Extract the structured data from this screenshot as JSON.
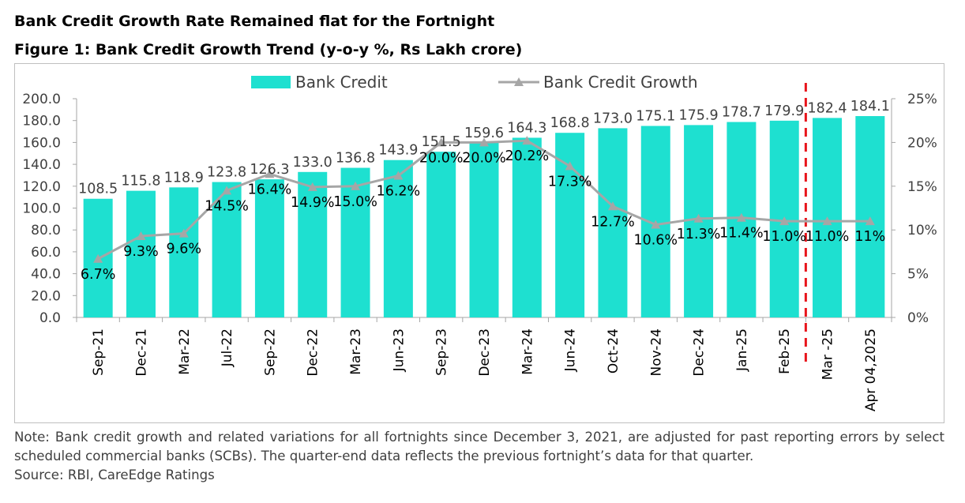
{
  "heading": "Bank Credit Growth Rate Remained flat for the Fortnight",
  "figure_title": "Figure 1: Bank Credit Growth Trend (y-o-y %, Rs Lakh crore)",
  "note": {
    "text": "Note: Bank credit growth and related variations for all fortnights since December 3, 2021, are adjusted for past reporting errors by select scheduled commercial banks (SCBs). The quarter-end data reflects the previous fortnight’s data for that quarter.",
    "source": "Source: RBI, CareEdge Ratings"
  },
  "colors": {
    "bar": "#1ee0d0",
    "line": "#a6a6a6",
    "divider": "#e8141b",
    "axis": "#a6a6a6"
  },
  "chart_data": {
    "type": "bar",
    "categories": [
      "Sep-21",
      "Dec-21",
      "Mar-22",
      "Jul-22",
      "Sep-22",
      "Dec-22",
      "Mar-23",
      "Jun-23",
      "Sep-23",
      "Dec-23",
      "Mar-24",
      "Jun-24",
      "Oct-24",
      "Nov-24",
      "Dec-24",
      "Jan-25",
      "Feb-25",
      "Mar -25",
      "Apr 04,2025"
    ],
    "series": [
      {
        "name": "Bank Credit",
        "type": "bar",
        "axis": "left",
        "values": [
          108.5,
          115.8,
          118.9,
          123.8,
          126.3,
          133.0,
          136.8,
          143.9,
          151.5,
          159.6,
          164.3,
          168.8,
          173.0,
          175.1,
          175.9,
          178.7,
          179.9,
          182.4,
          184.1
        ],
        "labels": [
          "108.5",
          "115.8",
          "118.9",
          "123.8",
          "126.3",
          "133.0",
          "136.8",
          "143.9",
          "151.5",
          "159.6",
          "164.3",
          "168.8",
          "173.0",
          "175.1",
          "175.9",
          "178.7",
          "179.9",
          "182.4",
          "184.1"
        ]
      },
      {
        "name": "Bank Credit Growth",
        "type": "line",
        "axis": "right",
        "values": [
          6.7,
          9.3,
          9.6,
          14.5,
          16.4,
          14.9,
          15.0,
          16.2,
          20.0,
          20.0,
          20.2,
          17.3,
          12.7,
          10.6,
          11.3,
          11.4,
          11.0,
          11.0,
          11
        ],
        "labels": [
          "6.7%",
          "9.3%",
          "9.6%",
          "14.5%",
          "16.4%",
          "14.9%",
          "15.0%",
          "16.2%",
          "20.0%",
          "20.0%",
          "20.2%",
          "17.3%",
          "12.7%",
          "10.6%",
          "11.3%",
          "11.4%",
          "11.0%",
          "11.0%",
          "11%"
        ]
      }
    ],
    "y_left": {
      "ylim": [
        0,
        200
      ],
      "ticks": [
        "0.0",
        "20.0",
        "40.0",
        "60.0",
        "80.0",
        "100.0",
        "120.0",
        "140.0",
        "160.0",
        "180.0",
        "200.0"
      ]
    },
    "y_right": {
      "ylim": [
        0,
        25
      ],
      "ticks": [
        "0%",
        "5%",
        "10%",
        "15%",
        "20%",
        "25%"
      ]
    },
    "divider_after_category": "Feb-25",
    "legend_position": "top-center",
    "grid": false
  }
}
